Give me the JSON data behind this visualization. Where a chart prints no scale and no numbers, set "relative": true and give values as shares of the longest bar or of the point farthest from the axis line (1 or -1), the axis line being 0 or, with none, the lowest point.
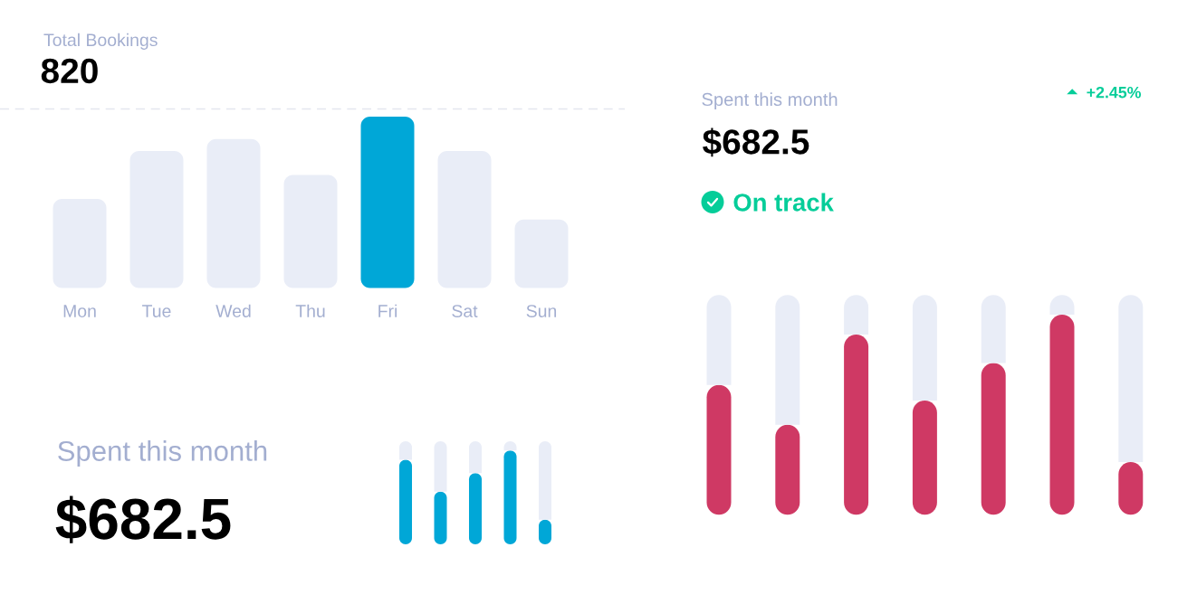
{
  "chart_data": [
    {
      "type": "bar",
      "title": "Total Bookings",
      "subtitle": "820",
      "relative": true,
      "categories": [
        "Mon",
        "Tue",
        "Wed",
        "Thu",
        "Fri",
        "Sat",
        "Sun"
      ],
      "values": [
        0.52,
        0.8,
        0.87,
        0.66,
        1,
        0.8,
        0.4
      ],
      "colors": [
        "#e9edf7",
        "#e9edf7",
        "#e9edf7",
        "#e9edf7",
        "#00a7d7",
        "#e9edf7",
        "#e9edf7"
      ]
    },
    {
      "type": "bar",
      "title": "Spent this month",
      "subtitle": "$682.5",
      "relative": true,
      "stacked": true,
      "categories": [
        null,
        null,
        null,
        null,
        null
      ],
      "series": [
        {
          "color": "#00a7d7",
          "values": [
            0.82,
            0.51,
            0.69,
            0.91,
            0.24
          ]
        },
        {
          "color": "#e9edf7",
          "values": [
            0.18,
            0.49,
            0.31,
            0.09,
            0.76
          ]
        }
      ]
    },
    {
      "type": "bar",
      "title": "Spent this month",
      "subtitle": "$682.5",
      "annotations": [
        "+2.45%",
        "On track"
      ],
      "relative": true,
      "stacked": true,
      "categories": [
        null,
        null,
        null,
        null,
        null,
        null,
        null
      ],
      "series": [
        {
          "color": "#cf3964",
          "values": [
            0.59,
            0.41,
            0.82,
            0.52,
            0.69,
            0.91,
            0.24
          ]
        },
        {
          "color": "#e9edf7",
          "values": [
            0.41,
            0.59,
            0.18,
            0.48,
            0.31,
            0.09,
            0.76
          ]
        }
      ]
    }
  ]
}
